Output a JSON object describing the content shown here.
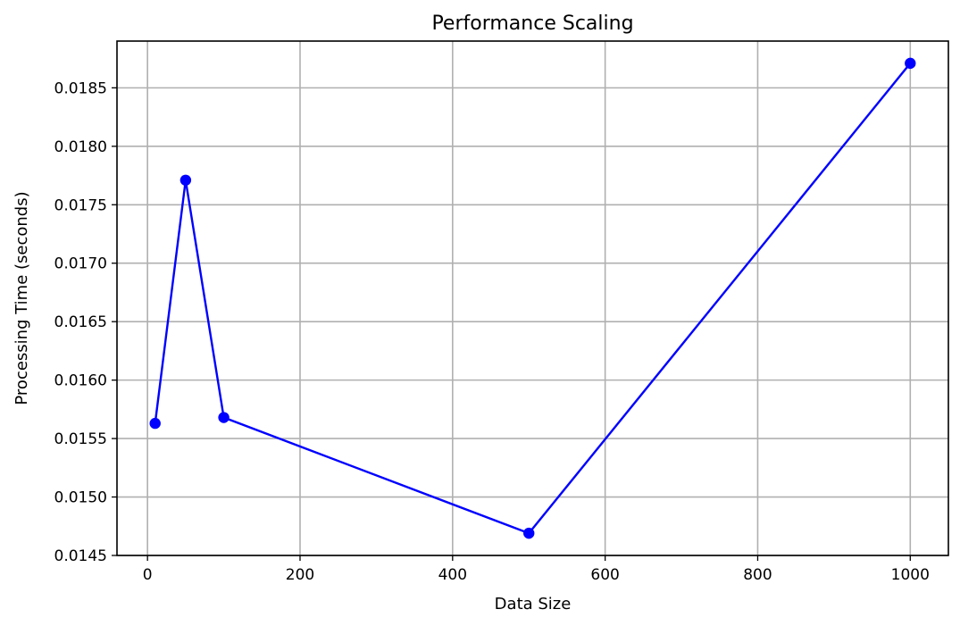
{
  "chart_data": {
    "type": "line",
    "title": "Performance Scaling",
    "xlabel": "Data Size",
    "ylabel": "Processing Time (seconds)",
    "xlim": [
      -40,
      1050
    ],
    "ylim": [
      0.0145,
      0.0189
    ],
    "xticks": [
      0,
      200,
      400,
      600,
      800,
      1000
    ],
    "xtick_labels": [
      "0",
      "200",
      "400",
      "600",
      "800",
      "1000"
    ],
    "yticks": [
      0.0145,
      0.015,
      0.0155,
      0.016,
      0.0165,
      0.017,
      0.0175,
      0.018,
      0.0185
    ],
    "ytick_labels": [
      "0.0145",
      "0.0150",
      "0.0155",
      "0.0160",
      "0.0165",
      "0.0170",
      "0.0175",
      "0.0180",
      "0.0185"
    ],
    "grid": true,
    "series": [
      {
        "color": "#0000ff",
        "marker": "circle",
        "x": [
          10,
          50,
          100,
          500,
          1000
        ],
        "y": [
          0.01563,
          0.01771,
          0.01568,
          0.01469,
          0.01871
        ]
      }
    ]
  }
}
